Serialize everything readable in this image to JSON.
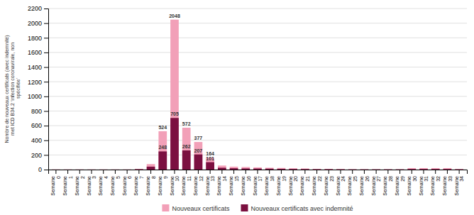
{
  "chart_data": {
    "type": "bar",
    "y_label": "Nombre de nouveaux certificats (avec indemnité)\nmet ICD B34.2 ‘infection coronavirale, non\n spécifiée’",
    "categories": [
      "Semaine\n0",
      "Semaine\n1",
      "Semaine\n2",
      "Semaine\n3",
      "Semaine\n4",
      "Semaine\n5",
      "Semaine\n6",
      "Semaine\n7",
      "Semaine\n8",
      "Semaine\n9",
      "Semaine\n10",
      "Semaine\n11",
      "Semaine\n12",
      "Semaine\n13",
      "Semaine\n14",
      "Semaine\n15",
      "Semaine\n16",
      "Semaine\n17",
      "Semaine\n18",
      "Semaine\n19",
      "Semaine\n20",
      "Semaine\n21",
      "Semaine\n22",
      "Semaine\n23",
      "Semaine\n24",
      "Semaine\n25",
      "Semaine\n26",
      "Semaine\n27",
      "Semaine\n28",
      "Semaine\n29",
      "Semaine\n30",
      "Semaine\n31",
      "Semaine\n32",
      "Semaine\n33",
      "Semaine\n34"
    ],
    "series": [
      {
        "name": "Nouveaux certificats",
        "color": "#f2a0b8",
        "values": [
          2,
          2,
          2,
          2,
          2,
          2,
          2,
          10,
          75,
          524,
          2048,
          572,
          377,
          164,
          55,
          40,
          35,
          30,
          25,
          22,
          18,
          15,
          10,
          10,
          8,
          5,
          5,
          5,
          5,
          5,
          20,
          20,
          20,
          20,
          8
        ]
      },
      {
        "name": "Nouveaux certificats avec indemnité",
        "color": "#7b1040",
        "values": [
          1,
          1,
          1,
          1,
          1,
          1,
          1,
          5,
          40,
          248,
          705,
          262,
          207,
          101,
          25,
          18,
          15,
          14,
          12,
          10,
          8,
          7,
          5,
          5,
          4,
          3,
          3,
          3,
          3,
          3,
          8,
          8,
          8,
          8,
          4
        ]
      }
    ],
    "annotations": [
      {
        "x": "Semaine\n9",
        "y": 524,
        "text": "524"
      },
      {
        "x": "Semaine\n9",
        "y": 248,
        "text": "248"
      },
      {
        "x": "Semaine\n10",
        "y": 2048,
        "text": "2048"
      },
      {
        "x": "Semaine\n10",
        "y": 705,
        "text": "705"
      },
      {
        "x": "Semaine\n11",
        "y": 572,
        "text": "572"
      },
      {
        "x": "Semaine\n11",
        "y": 262,
        "text": "262"
      },
      {
        "x": "Semaine\n12",
        "y": 377,
        "text": "377"
      },
      {
        "x": "Semaine\n12",
        "y": 207,
        "text": "207"
      },
      {
        "x": "Semaine\n13",
        "y": 164,
        "text": "164"
      },
      {
        "x": "Semaine\n13",
        "y": 101,
        "text": "101"
      }
    ],
    "ylim": [
      0,
      2200
    ],
    "yticks": [
      0,
      200,
      400,
      600,
      800,
      1000,
      1200,
      1400,
      1600,
      1800,
      2000,
      2200
    ],
    "grid": true,
    "legend": "bottom"
  }
}
